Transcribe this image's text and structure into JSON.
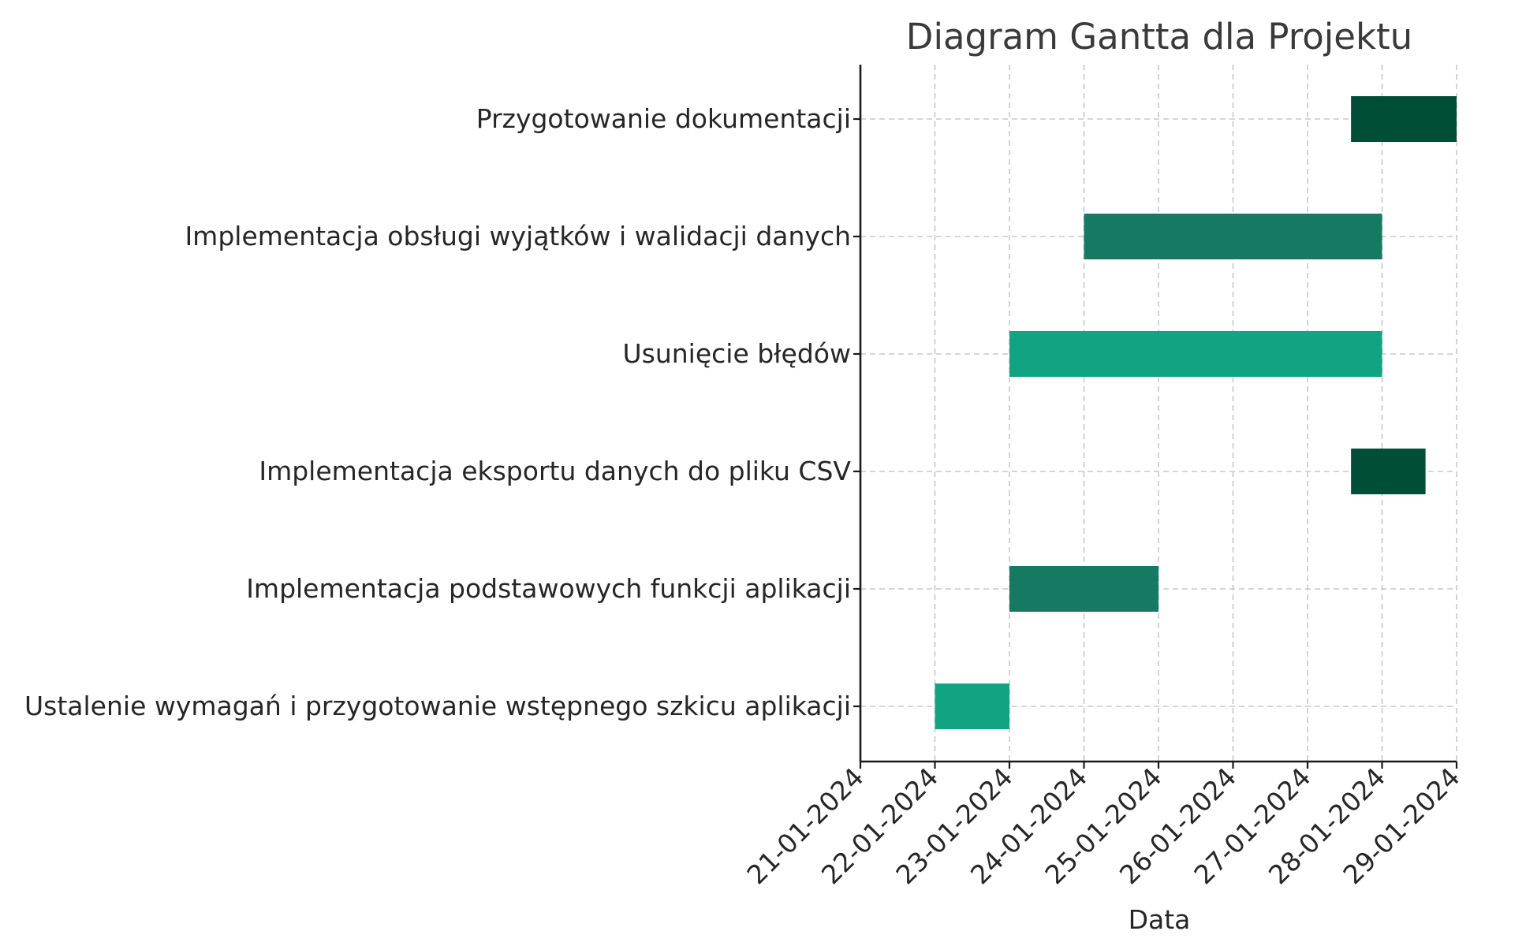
{
  "chart_data": {
    "type": "gantt",
    "title": "Diagram Gantta dla Projektu",
    "xlabel": "Data",
    "ylabel": "",
    "x_axis": {
      "format": "DD-MM-YYYY",
      "range": [
        "2024-01-21",
        "2024-01-29"
      ],
      "tick_labels": [
        "21-01-2024",
        "22-01-2024",
        "23-01-2024",
        "24-01-2024",
        "25-01-2024",
        "26-01-2024",
        "27-01-2024",
        "28-01-2024",
        "29-01-2024"
      ]
    },
    "grid": true,
    "tasks": [
      {
        "name": "Przygotowanie dokumentacji",
        "start": "2024-01-27T14:00",
        "end": "2024-01-29T00:00",
        "color": "#004d38"
      },
      {
        "name": "Implementacja obsługi wyjątków i walidacji danych",
        "start": "2024-01-24T00:00",
        "end": "2024-01-28T00:00",
        "color": "#167a62"
      },
      {
        "name": "Usunięcie błędów",
        "start": "2024-01-23T00:00",
        "end": "2024-01-28T00:00",
        "color": "#12a383"
      },
      {
        "name": "Implementacja eksportu danych do pliku CSV",
        "start": "2024-01-27T14:00",
        "end": "2024-01-28T14:00",
        "color": "#004d38"
      },
      {
        "name": "Implementacja podstawowych funkcji aplikacji",
        "start": "2024-01-23T00:00",
        "end": "2024-01-25T00:00",
        "color": "#167a62"
      },
      {
        "name": "Ustalenie wymagań i przygotowanie wstępnego szkicu aplikacji",
        "start": "2024-01-22T00:00",
        "end": "2024-01-23T00:00",
        "color": "#12a383"
      }
    ]
  }
}
